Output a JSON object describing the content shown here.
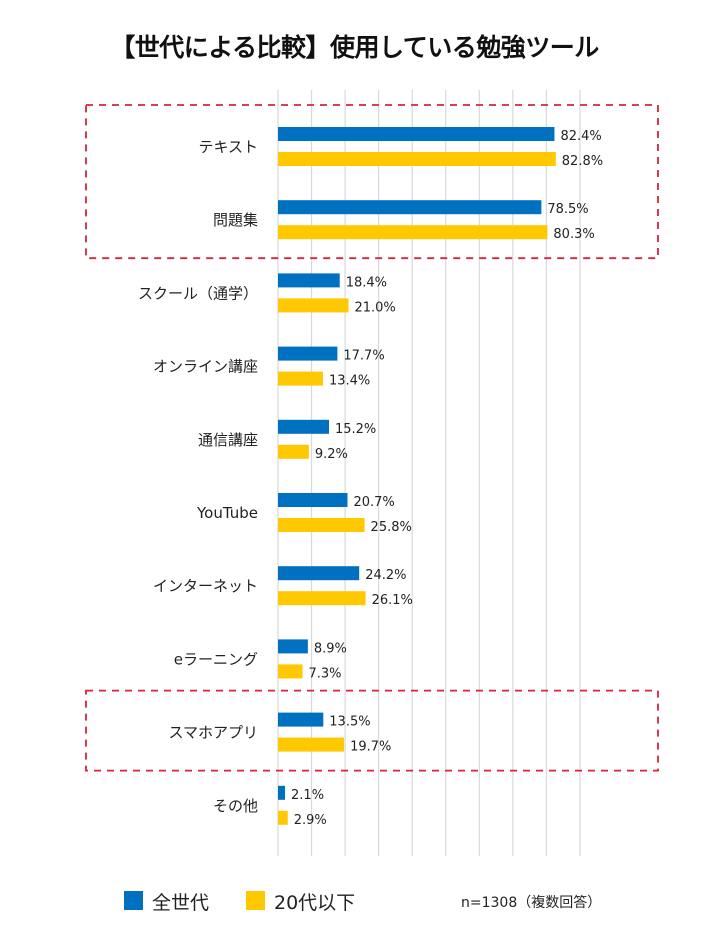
{
  "chart_data": {
    "type": "bar",
    "orientation": "horizontal",
    "title": "【世代による比較】使用している勉強ツール",
    "categories": [
      "テキスト",
      "問題集",
      "スクール（通学）",
      "オンライン講座",
      "通信講座",
      "YouTube",
      "インターネット",
      "eラーニング",
      "スマホアプリ",
      "その他"
    ],
    "series": [
      {
        "name": "全世代",
        "color": "#0070c0",
        "values": [
          82.4,
          78.5,
          18.4,
          17.7,
          15.2,
          20.7,
          24.2,
          8.9,
          13.5,
          2.1
        ],
        "labels": [
          "82.4%",
          "78.5%",
          "18.4%",
          "17.7%",
          "15.2%",
          "20.7%",
          "24.2%",
          "8.9%",
          "13.5%",
          "2.1%"
        ]
      },
      {
        "name": "20代以下",
        "color": "#ffc800",
        "values": [
          82.8,
          80.3,
          21.0,
          13.4,
          9.2,
          25.8,
          26.1,
          7.3,
          19.7,
          2.9
        ],
        "labels": [
          "82.8%",
          "80.3%",
          "21.0%",
          "13.4%",
          "9.2%",
          "25.8%",
          "26.1%",
          "7.3%",
          "19.7%",
          "2.9%"
        ]
      }
    ],
    "xlim": [
      0,
      100
    ],
    "grid": true,
    "grid_step": 10,
    "highlight_groups": [
      [
        "テキスト",
        "問題集"
      ],
      [
        "スマホアプリ"
      ]
    ],
    "highlight_color": "#d6243a",
    "legend_position": "bottom-left",
    "note": "n=1308（複数回答）"
  }
}
